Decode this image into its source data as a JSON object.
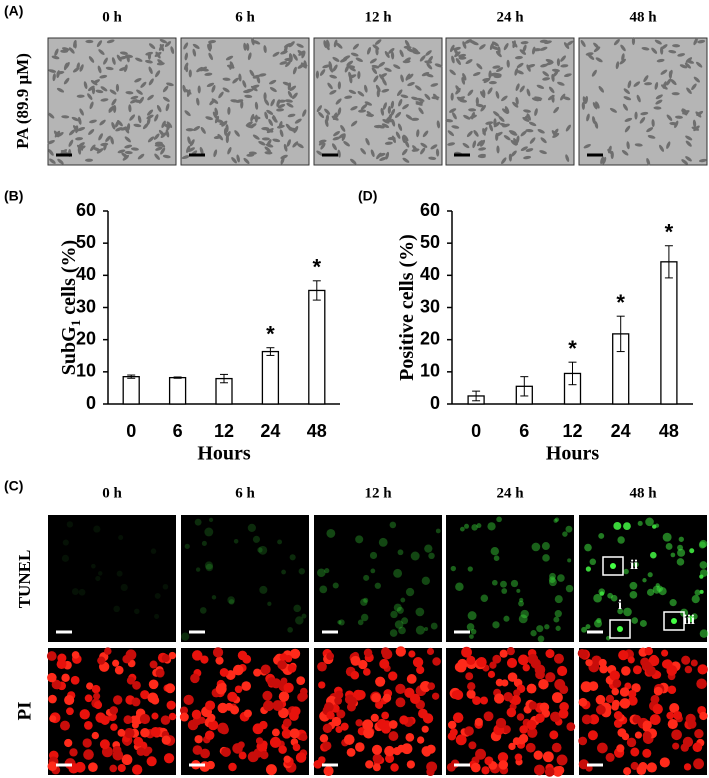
{
  "panels": {
    "a": "(A)",
    "b": "(B)",
    "c": "(C)",
    "d": "(D)"
  },
  "time_labels": [
    "0 h",
    "6 h",
    "12 h",
    "24 h",
    "48 h"
  ],
  "row_labels": {
    "phase": "PA (89.9 μM)",
    "tunel": "TUNEL",
    "pi": "PI"
  },
  "insets": [
    "i",
    "ii",
    "iii"
  ],
  "chart_data": [
    {
      "type": "bar",
      "y_label": [
        "SubG",
        "1",
        " cells (%)"
      ],
      "x_label": "Hours",
      "categories": [
        "0",
        "6",
        "12",
        "24",
        "48"
      ],
      "values": [
        8.5,
        8.2,
        7.9,
        16.3,
        35.3
      ],
      "errors": [
        0.5,
        0.2,
        1.3,
        1.2,
        3.0
      ],
      "markers": [
        null,
        null,
        null,
        "*",
        "*"
      ],
      "color": "#ffffff",
      "ylim": [
        0,
        60
      ],
      "yticks": [
        0,
        10,
        20,
        30,
        40,
        50,
        60
      ]
    },
    {
      "type": "bar",
      "y_label": [
        "Positive cells (%)"
      ],
      "x_label": "Hours",
      "categories": [
        "0",
        "6",
        "12",
        "24",
        "48"
      ],
      "values": [
        2.5,
        5.5,
        9.5,
        21.8,
        44.2
      ],
      "errors": [
        1.5,
        3.0,
        3.5,
        5.5,
        5.0
      ],
      "markers": [
        null,
        null,
        "*",
        "*",
        "*"
      ],
      "color": "#ffffff",
      "ylim": [
        0,
        60
      ],
      "yticks": [
        0,
        10,
        20,
        30,
        40,
        50,
        60
      ]
    }
  ]
}
